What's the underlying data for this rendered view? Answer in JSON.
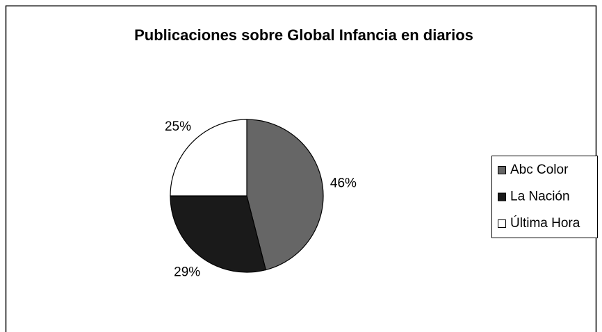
{
  "chart_data": {
    "type": "pie",
    "title": "Publicaciones sobre Global Infancia en diarios",
    "categories": [
      "Abc Color",
      "La Nación",
      "Última Hora"
    ],
    "values": [
      46,
      29,
      25
    ],
    "value_labels": [
      "46%",
      "29%",
      "25%"
    ],
    "colors": [
      "#666666",
      "#1a1a1a",
      "#ffffff"
    ],
    "legend": "right"
  }
}
